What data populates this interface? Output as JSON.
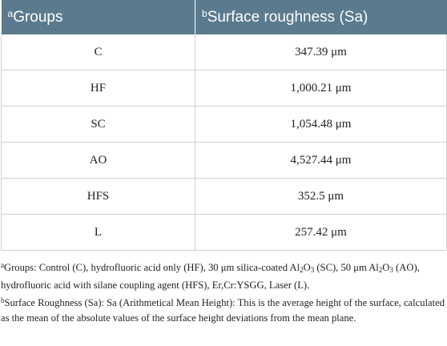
{
  "table": {
    "headers": [
      {
        "marker": "a",
        "label": "Groups"
      },
      {
        "marker": "b",
        "label": "Surface roughness (Sa)"
      }
    ],
    "rows": [
      {
        "group": "C",
        "value": "347.39 μm"
      },
      {
        "group": "HF",
        "value": "1,000.21 μm"
      },
      {
        "group": "SC",
        "value": "1,054.48 μm"
      },
      {
        "group": "AO",
        "value": "4,527.44 μm"
      },
      {
        "group": "HFS",
        "value": "352.5 μm"
      },
      {
        "group": "L",
        "value": "257.42 μm"
      }
    ]
  },
  "footnotes": {
    "a": {
      "marker": "a",
      "part1": "Groups: Control (C), hydrofluoric acid only (HF), 30 μm silica-coated Al",
      "sub1a": "2",
      "mid1": "O",
      "sub1b": "3",
      "part2": " (SC), 50 μm Al",
      "sub2a": "2",
      "mid2": "O",
      "sub2b": "3",
      "part3": " (AO), hydrofluoric acid with silane coupling agent (HFS), Er,Cr:YSGG, Laser (L)."
    },
    "b": {
      "marker": "b",
      "text": "Surface Roughness (Sa): Sa (Arithmetical Mean Height): This is the average height of the surface, calculated as the mean of the absolute values of the surface height deviations from the mean plane."
    }
  }
}
